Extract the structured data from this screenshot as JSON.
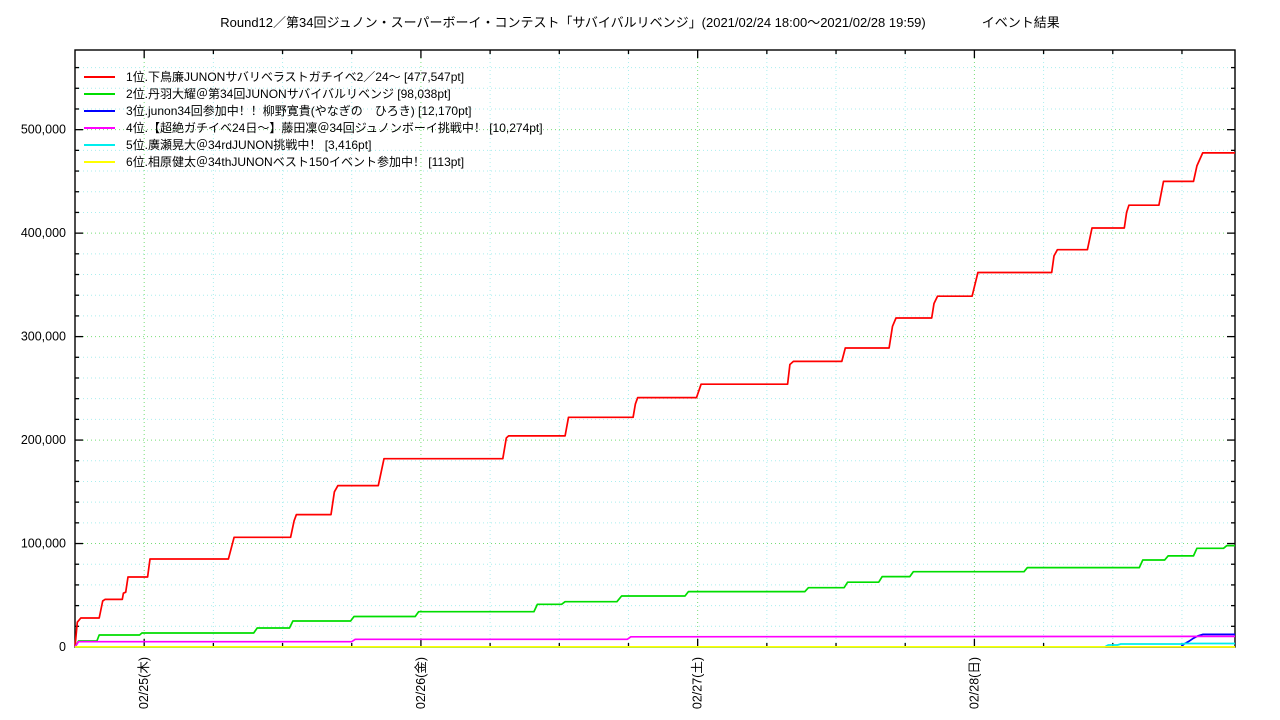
{
  "title": {
    "main": "Round12／第34回ジュノン・スーパーボーイ・コンテスト「サバイバルリベンジ」(2021/02/24 18:00～2021/02/28 19:59)",
    "suffix": "イベント結果"
  },
  "legend": {
    "entries": [
      {
        "label": "1位.下鳥廉JUNONサバリベラストガチイベ2／24～ [477,547pt]",
        "color": "#ff0000"
      },
      {
        "label": "2位.丹羽大耀＠第34回JUNONサバイバルリベンジ [98,038pt]",
        "color": "#00dd00"
      },
      {
        "label": "3位.junon34回参加中！！柳野寛貴(やなぎの　ひろき) [12,170pt]",
        "color": "#0000ff"
      },
      {
        "label": "4位.【超絶ガチイベ24日～】藤田凜＠34回ジュノンボーイ挑戦中！ [10,274pt]",
        "color": "#ff00ff"
      },
      {
        "label": "5位.廣瀬晃大＠34rdJUNON挑戦中！ [3,416pt]",
        "color": "#00eeee"
      },
      {
        "label": "6位.相原健太＠34thJUNONベスト150イベント参加中！ [113pt]",
        "color": "#ffff00"
      }
    ]
  },
  "chart_data": {
    "type": "line",
    "title": "Round12／第34回ジュノン・スーパーボーイ・コンテスト「サバイバルリベンジ」(2021/02/24 18:00～2021/02/28 19:59) イベント結果",
    "xlabel": "",
    "ylabel": "",
    "x_unit": "hours since 2021/02/24 18:00",
    "xlim": [
      0,
      100.6
    ],
    "ylim": [
      0,
      577000
    ],
    "grid": "on",
    "legend_position": "top-left-inside",
    "xticks": [
      {
        "x": 6,
        "label": "02/25(木)"
      },
      {
        "x": 30,
        "label": "02/26(金)"
      },
      {
        "x": 54,
        "label": "02/27(土)"
      },
      {
        "x": 78,
        "label": "02/28(日)"
      }
    ],
    "xminor_step": 6,
    "yticks": [
      {
        "y": 0,
        "label": "0"
      },
      {
        "y": 100000,
        "label": "100,000"
      },
      {
        "y": 200000,
        "label": "200,000"
      },
      {
        "y": 300000,
        "label": "300,000"
      },
      {
        "y": 400000,
        "label": "400,000"
      },
      {
        "y": 500000,
        "label": "500,000"
      }
    ],
    "yminor_step": 20000,
    "grid_colors": {
      "minor": "#aaeeee",
      "major": "#77dd77"
    },
    "series": [
      {
        "name": "1位.下鳥廉JUNONサバリベラストガチイベ2／24～",
        "final_pt": 477547,
        "color": "#ff0000",
        "points": [
          [
            0,
            0
          ],
          [
            0.2,
            24000
          ],
          [
            0.5,
            28000
          ],
          [
            2.1,
            28000
          ],
          [
            2.4,
            44500
          ],
          [
            2.6,
            46000
          ],
          [
            4.1,
            46000
          ],
          [
            4.2,
            52000
          ],
          [
            4.4,
            53000
          ],
          [
            4.6,
            67700
          ],
          [
            6.3,
            67700
          ],
          [
            6.5,
            85100
          ],
          [
            13.3,
            85100
          ],
          [
            13.8,
            106000
          ],
          [
            18.7,
            106000
          ],
          [
            19.0,
            122000
          ],
          [
            19.2,
            128000
          ],
          [
            22.2,
            128000
          ],
          [
            22.5,
            150000
          ],
          [
            22.8,
            156000
          ],
          [
            26.3,
            156000
          ],
          [
            26.8,
            182000
          ],
          [
            37.1,
            182000
          ],
          [
            37.4,
            202000
          ],
          [
            37.6,
            204000
          ],
          [
            42.5,
            204000
          ],
          [
            42.8,
            222000
          ],
          [
            48.4,
            222000
          ],
          [
            48.6,
            235000
          ],
          [
            48.8,
            241000
          ],
          [
            53.9,
            241000
          ],
          [
            54.3,
            254000
          ],
          [
            61.8,
            254000
          ],
          [
            62.0,
            273000
          ],
          [
            62.3,
            276000
          ],
          [
            66.5,
            276000
          ],
          [
            66.8,
            289000
          ],
          [
            70.6,
            289000
          ],
          [
            70.9,
            310000
          ],
          [
            71.2,
            318000
          ],
          [
            74.3,
            318000
          ],
          [
            74.5,
            332000
          ],
          [
            74.8,
            339000
          ],
          [
            77.8,
            339000
          ],
          [
            78.3,
            362000
          ],
          [
            84.7,
            362000
          ],
          [
            84.9,
            378000
          ],
          [
            85.2,
            384000
          ],
          [
            87.8,
            384000
          ],
          [
            88.2,
            405000
          ],
          [
            91.0,
            405000
          ],
          [
            91.2,
            420000
          ],
          [
            91.4,
            427000
          ],
          [
            94.0,
            427000
          ],
          [
            94.4,
            450000
          ],
          [
            97.0,
            450000
          ],
          [
            97.3,
            465000
          ],
          [
            97.8,
            477547
          ],
          [
            100.6,
            477547
          ]
        ]
      },
      {
        "name": "2位.丹羽大耀＠第34回JUNONサバイバルリベンジ",
        "final_pt": 98038,
        "color": "#00dd00",
        "points": [
          [
            0,
            0
          ],
          [
            0.3,
            5800
          ],
          [
            1.9,
            5800
          ],
          [
            2.1,
            11600
          ],
          [
            5.6,
            11600
          ],
          [
            5.8,
            13500
          ],
          [
            15.5,
            13500
          ],
          [
            15.8,
            18400
          ],
          [
            18.6,
            18400
          ],
          [
            18.9,
            25100
          ],
          [
            23.9,
            25100
          ],
          [
            24.2,
            29500
          ],
          [
            29.5,
            29500
          ],
          [
            29.8,
            34100
          ],
          [
            39.8,
            34100
          ],
          [
            40.1,
            41300
          ],
          [
            42.2,
            41300
          ],
          [
            42.5,
            43800
          ],
          [
            47.0,
            43800
          ],
          [
            47.4,
            49300
          ],
          [
            52.9,
            49300
          ],
          [
            53.2,
            53500
          ],
          [
            63.3,
            53500
          ],
          [
            63.6,
            57300
          ],
          [
            66.7,
            57300
          ],
          [
            67.0,
            62600
          ],
          [
            69.7,
            62600
          ],
          [
            70.0,
            68000
          ],
          [
            72.4,
            68000
          ],
          [
            72.7,
            72800
          ],
          [
            82.3,
            72800
          ],
          [
            82.6,
            76700
          ],
          [
            92.3,
            76700
          ],
          [
            92.6,
            84100
          ],
          [
            94.5,
            84100
          ],
          [
            94.8,
            88000
          ],
          [
            97.0,
            88000
          ],
          [
            97.3,
            95400
          ],
          [
            99.6,
            95400
          ],
          [
            99.9,
            98038
          ],
          [
            100.6,
            98038
          ]
        ]
      },
      {
        "name": "3位.junon34回参加中！！柳野寛貴(やなぎの　ひろき)",
        "final_pt": 12170,
        "color": "#0000ff",
        "points": [
          [
            0,
            0
          ],
          [
            95.9,
            0
          ],
          [
            96.2,
            3000
          ],
          [
            96.6,
            5500
          ],
          [
            97.0,
            8500
          ],
          [
            97.4,
            10800
          ],
          [
            97.8,
            12170
          ],
          [
            100.6,
            12170
          ]
        ]
      },
      {
        "name": "4位.【超絶ガチイベ24日～】藤田凜＠34回ジュノンボーイ挑戦中！",
        "final_pt": 10274,
        "color": "#ff00ff",
        "points": [
          [
            0,
            0
          ],
          [
            0.3,
            5100
          ],
          [
            24.0,
            5100
          ],
          [
            24.3,
            7400
          ],
          [
            47.9,
            7400
          ],
          [
            48.2,
            9900
          ],
          [
            97.8,
            10274
          ],
          [
            100.6,
            10274
          ]
        ]
      },
      {
        "name": "5位.廣瀬晃大＠34rdJUNON挑戦中！",
        "final_pt": 3416,
        "color": "#00eeee",
        "points": [
          [
            0,
            0
          ],
          [
            89.3,
            0
          ],
          [
            89.6,
            1900
          ],
          [
            90.4,
            1900
          ],
          [
            90.7,
            2900
          ],
          [
            96.0,
            2900
          ],
          [
            96.3,
            3416
          ],
          [
            100.6,
            3416
          ]
        ]
      },
      {
        "name": "6位.相原健太＠34thJUNONベスト150イベント参加中！",
        "final_pt": 113,
        "color": "#ffff00",
        "points": [
          [
            0,
            0
          ],
          [
            0.3,
            113
          ],
          [
            100.6,
            113
          ]
        ]
      }
    ]
  }
}
